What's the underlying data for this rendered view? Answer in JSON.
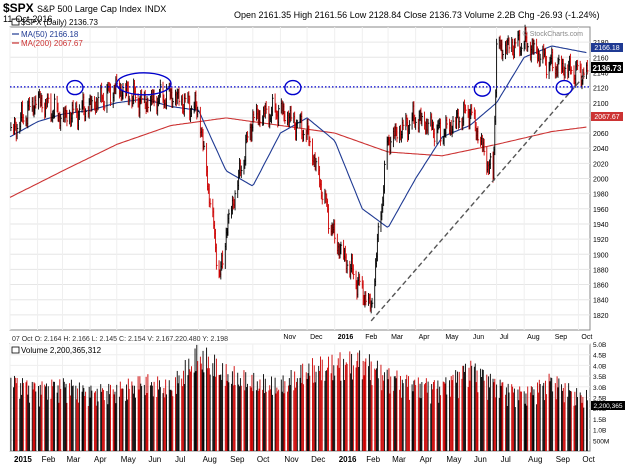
{
  "header": {
    "symbol": "$SPX",
    "name": "S&P 500 Large Cap Index",
    "exchange": "INDX",
    "date": "11-Oct-2016",
    "ohlc_line": {
      "open_label": "Open",
      "open": "2161.35",
      "high_label": "High",
      "high": "2161.56",
      "low_label": "Low",
      "low": "2128.84",
      "close_label": "Close",
      "close": "2136.73",
      "volume_label": "Volume",
      "volume": "2.2B",
      "chg_label": "Chg",
      "chg": "-26.93 (-1.24%)"
    },
    "watermark": "© StockCharts.com"
  },
  "legend": {
    "price": "$SPX (Daily) 2136.73",
    "ma50": "MA(50) 2166.18",
    "ma200": "MA(200) 2067.67"
  },
  "crosshair_readout": "07 Oct O: 2.164   H: 2.166   L: 2.145   C: 2.154   V: 2.167.220.480   Y: 2.198",
  "volume_legend": "Volume 2,200,365,312",
  "badges": {
    "ma50": "2166.18",
    "close": "2136.73",
    "ma200": "2067.67",
    "volume": "2,200,365"
  },
  "colors": {
    "up": "#000000",
    "down": "#cc0000",
    "ma50": "#1f3a93",
    "ma200": "#cc3333",
    "annotation": "#0000cc",
    "trendline": "#555555",
    "volume_bar": "#000000",
    "volume_bar_down": "#cc0000"
  },
  "chart_data": {
    "type": "line",
    "title": "$SPX S&P 500 Large Cap Index INDX",
    "price_axis": {
      "ylim": [
        1800,
        2200
      ],
      "ticks": [
        1820,
        1840,
        1860,
        1880,
        1900,
        1920,
        1940,
        1960,
        1980,
        2000,
        2020,
        2040,
        2060,
        2080,
        2100,
        2120,
        2140,
        2160,
        2180
      ]
    },
    "volume_axis": {
      "ylim": [
        0,
        5.0
      ],
      "unit": "B",
      "tick_labels": [
        "500M",
        "1.0B",
        "1.5B",
        "2.0B",
        "2.5B",
        "3.0B",
        "3.5B",
        "4.0B",
        "4.5B",
        "5.0B"
      ]
    },
    "x_axis_labels": [
      "2015",
      "Feb",
      "Mar",
      "Apr",
      "May",
      "Jun",
      "Jul",
      "Aug",
      "Sep",
      "Oct",
      "Nov",
      "Dec",
      "2016",
      "Feb",
      "Mar",
      "Apr",
      "May",
      "Jun",
      "Jul",
      "Aug",
      "Sep",
      "Oct"
    ],
    "price_x_axis_labels": [
      "Nov",
      "Dec",
      "2016",
      "Feb",
      "Mar",
      "Apr",
      "May",
      "Jun",
      "Jul",
      "Aug",
      "Sep",
      "Oct"
    ],
    "series": [
      {
        "name": "$SPX (Daily)",
        "x": [
          "2015-01",
          "2015-02",
          "2015-03",
          "2015-04",
          "2015-05",
          "2015-06",
          "2015-07",
          "2015-08",
          "2015-08-25",
          "2015-09",
          "2015-10",
          "2015-11",
          "2015-12",
          "2016-01",
          "2016-02-11",
          "2016-03",
          "2016-04",
          "2016-05",
          "2016-06",
          "2016-06-27",
          "2016-07",
          "2016-08",
          "2016-09",
          "2016-10-11"
        ],
        "values": [
          2058,
          2105,
          2080,
          2095,
          2120,
          2100,
          2110,
          2090,
          1867,
          1930,
          2080,
          2090,
          2060,
          1920,
          1829,
          2050,
          2080,
          2060,
          2090,
          2000,
          2170,
          2180,
          2150,
          2137
        ]
      },
      {
        "name": "MA(50)",
        "x": [
          "2015-01",
          "2015-02",
          "2015-03",
          "2015-04",
          "2015-05",
          "2015-06",
          "2015-07",
          "2015-08",
          "2015-09",
          "2015-10",
          "2015-11",
          "2015-12",
          "2016-01",
          "2016-02",
          "2016-03",
          "2016-04",
          "2016-05",
          "2016-06",
          "2016-07",
          "2016-08",
          "2016-09",
          "2016-10-11"
        ],
        "values": [
          2055,
          2075,
          2085,
          2090,
          2100,
          2105,
          2095,
          2090,
          2010,
          1990,
          2060,
          2080,
          2050,
          1960,
          1935,
          2000,
          2055,
          2070,
          2100,
          2160,
          2175,
          2166
        ]
      },
      {
        "name": "MA(200)",
        "x": [
          "2015-01",
          "2015-03",
          "2015-05",
          "2015-07",
          "2015-09",
          "2015-11",
          "2016-01",
          "2016-03",
          "2016-05",
          "2016-07",
          "2016-09",
          "2016-10-11"
        ],
        "values": [
          1975,
          2010,
          2045,
          2070,
          2080,
          2070,
          2060,
          2035,
          2030,
          2045,
          2062,
          2068
        ]
      }
    ],
    "annotations": [
      {
        "kind": "horizontal_line",
        "style": "dotted",
        "y": 2121
      },
      {
        "kind": "trendline",
        "style": "dashed",
        "from": [
          "2016-02-11",
          1812
        ],
        "to": [
          "2016-10-11",
          2140
        ]
      },
      {
        "kind": "circle",
        "x": "2015-03",
        "y": 2120
      },
      {
        "kind": "ellipse",
        "x": "2015-05/2015-07",
        "y": 2125
      },
      {
        "kind": "circle",
        "x": "2015-11",
        "y": 2120
      },
      {
        "kind": "circle",
        "x": "2016-06",
        "y": 2118
      },
      {
        "kind": "circle",
        "x": "2016-09",
        "y": 2120
      }
    ],
    "volume": {
      "name": "Volume",
      "x": [
        "2015-01",
        "2015-02",
        "2015-03",
        "2015-04",
        "2015-05",
        "2015-06",
        "2015-07",
        "2015-08",
        "2015-09",
        "2015-10",
        "2015-11",
        "2015-12",
        "2016-01",
        "2016-02",
        "2016-03",
        "2016-04",
        "2016-05",
        "2016-06",
        "2016-07",
        "2016-08",
        "2016-09",
        "2016-10"
      ],
      "values": [
        3.6,
        3.2,
        3.4,
        3.0,
        3.1,
        3.5,
        3.2,
        4.9,
        3.9,
        3.5,
        3.3,
        4.1,
        4.4,
        4.6,
        3.8,
        3.4,
        3.3,
        4.3,
        3.4,
        2.9,
        3.6,
        2.8
      ]
    },
    "grid": true,
    "legend_position": "top-left"
  }
}
